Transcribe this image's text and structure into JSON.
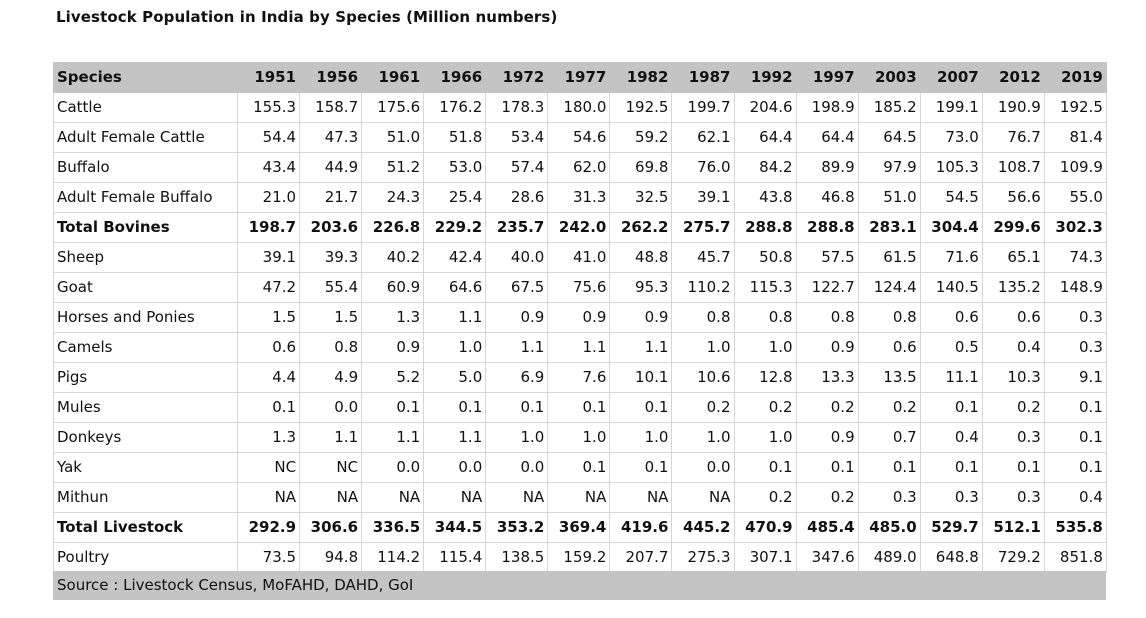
{
  "title": "Livestock Population in India by Species (Million numbers)",
  "table": {
    "header": {
      "species_label": "Species",
      "years": [
        "1951",
        "1956",
        "1961",
        "1966",
        "1972",
        "1977",
        "1982",
        "1987",
        "1992",
        "1997",
        "2003",
        "2007",
        "2012",
        "2019"
      ]
    },
    "rows": [
      {
        "species": "Cattle",
        "bold": false,
        "values": [
          "155.3",
          "158.7",
          "175.6",
          "176.2",
          "178.3",
          "180.0",
          "192.5",
          "199.7",
          "204.6",
          "198.9",
          "185.2",
          "199.1",
          "190.9",
          "192.5"
        ]
      },
      {
        "species": "Adult Female Cattle",
        "bold": false,
        "values": [
          "54.4",
          "47.3",
          "51.0",
          "51.8",
          "53.4",
          "54.6",
          "59.2",
          "62.1",
          "64.4",
          "64.4",
          "64.5",
          "73.0",
          "76.7",
          "81.4"
        ]
      },
      {
        "species": "Buffalo",
        "bold": false,
        "values": [
          "43.4",
          "44.9",
          "51.2",
          "53.0",
          "57.4",
          "62.0",
          "69.8",
          "76.0",
          "84.2",
          "89.9",
          "97.9",
          "105.3",
          "108.7",
          "109.9"
        ]
      },
      {
        "species": "Adult Female Buffalo",
        "bold": false,
        "values": [
          "21.0",
          "21.7",
          "24.3",
          "25.4",
          "28.6",
          "31.3",
          "32.5",
          "39.1",
          "43.8",
          "46.8",
          "51.0",
          "54.5",
          "56.6",
          "55.0"
        ]
      },
      {
        "species": "Total Bovines",
        "bold": true,
        "values": [
          "198.7",
          "203.6",
          "226.8",
          "229.2",
          "235.7",
          "242.0",
          "262.2",
          "275.7",
          "288.8",
          "288.8",
          "283.1",
          "304.4",
          "299.6",
          "302.3"
        ]
      },
      {
        "species": "Sheep",
        "bold": false,
        "values": [
          "39.1",
          "39.3",
          "40.2",
          "42.4",
          "40.0",
          "41.0",
          "48.8",
          "45.7",
          "50.8",
          "57.5",
          "61.5",
          "71.6",
          "65.1",
          "74.3"
        ]
      },
      {
        "species": "Goat",
        "bold": false,
        "values": [
          "47.2",
          "55.4",
          "60.9",
          "64.6",
          "67.5",
          "75.6",
          "95.3",
          "110.2",
          "115.3",
          "122.7",
          "124.4",
          "140.5",
          "135.2",
          "148.9"
        ]
      },
      {
        "species": "Horses and Ponies",
        "bold": false,
        "values": [
          "1.5",
          "1.5",
          "1.3",
          "1.1",
          "0.9",
          "0.9",
          "0.9",
          "0.8",
          "0.8",
          "0.8",
          "0.8",
          "0.6",
          "0.6",
          "0.3"
        ]
      },
      {
        "species": "Camels",
        "bold": false,
        "values": [
          "0.6",
          "0.8",
          "0.9",
          "1.0",
          "1.1",
          "1.1",
          "1.1",
          "1.0",
          "1.0",
          "0.9",
          "0.6",
          "0.5",
          "0.4",
          "0.3"
        ]
      },
      {
        "species": "Pigs",
        "bold": false,
        "values": [
          "4.4",
          "4.9",
          "5.2",
          "5.0",
          "6.9",
          "7.6",
          "10.1",
          "10.6",
          "12.8",
          "13.3",
          "13.5",
          "11.1",
          "10.3",
          "9.1"
        ]
      },
      {
        "species": "Mules",
        "bold": false,
        "values": [
          "0.1",
          "0.0",
          "0.1",
          "0.1",
          "0.1",
          "0.1",
          "0.1",
          "0.2",
          "0.2",
          "0.2",
          "0.2",
          "0.1",
          "0.2",
          "0.1"
        ]
      },
      {
        "species": "Donkeys",
        "bold": false,
        "values": [
          "1.3",
          "1.1",
          "1.1",
          "1.1",
          "1.0",
          "1.0",
          "1.0",
          "1.0",
          "1.0",
          "0.9",
          "0.7",
          "0.4",
          "0.3",
          "0.1"
        ]
      },
      {
        "species": "Yak",
        "bold": false,
        "values": [
          "NC",
          "NC",
          "0.0",
          "0.0",
          "0.0",
          "0.1",
          "0.1",
          "0.0",
          "0.1",
          "0.1",
          "0.1",
          "0.1",
          "0.1",
          "0.1"
        ]
      },
      {
        "species": "Mithun",
        "bold": false,
        "values": [
          "NA",
          "NA",
          "NA",
          "NA",
          "NA",
          "NA",
          "NA",
          "NA",
          "0.2",
          "0.2",
          "0.3",
          "0.3",
          "0.3",
          "0.4"
        ]
      },
      {
        "species": "Total Livestock",
        "bold": true,
        "values": [
          "292.9",
          "306.6",
          "336.5",
          "344.5",
          "353.2",
          "369.4",
          "419.6",
          "445.2",
          "470.9",
          "485.4",
          "485.0",
          "529.7",
          "512.1",
          "535.8"
        ]
      },
      {
        "species": "Poultry",
        "bold": false,
        "values": [
          "73.5",
          "94.8",
          "114.2",
          "115.4",
          "138.5",
          "159.2",
          "207.7",
          "275.3",
          "307.1",
          "347.6",
          "489.0",
          "648.8",
          "729.2",
          "851.8"
        ]
      }
    ]
  },
  "source": "Source : Livestock Census, MoFAHD, DAHD, GoI",
  "colors": {
    "header_background": "#c4c4c4",
    "source_background": "#c4c4c4",
    "grid_line": "#d6d6d6",
    "text": "#111111"
  }
}
